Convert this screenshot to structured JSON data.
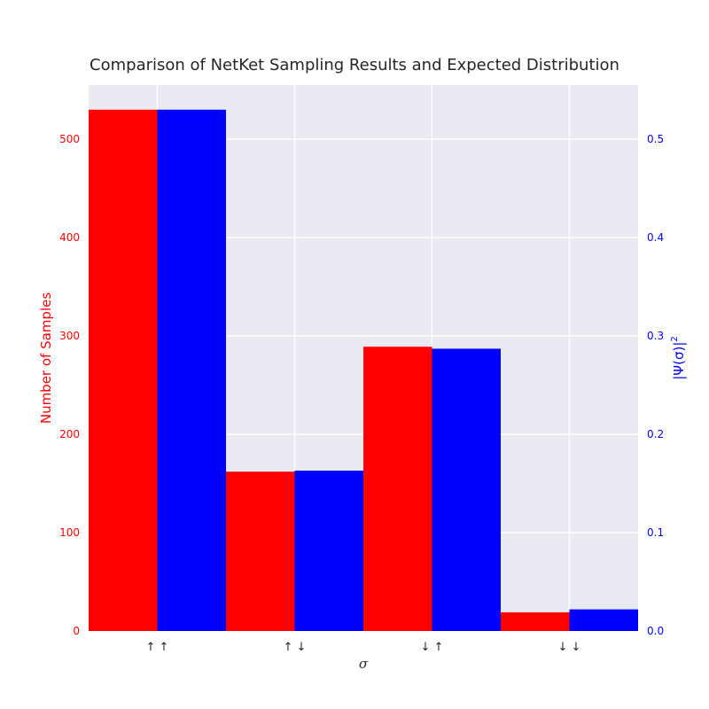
{
  "chart_data": {
    "type": "bar",
    "title": "Comparison of NetKet Sampling Results and Expected Distribution",
    "xlabel": "σ",
    "categories": [
      "↑ ↑",
      "↑ ↓",
      "↓ ↑",
      "↓ ↓"
    ],
    "series": [
      {
        "values": [
          530,
          162,
          289,
          19
        ],
        "axis": "left",
        "color": "#ff0000"
      },
      {
        "values": [
          0.53,
          0.163,
          0.287,
          0.022
        ],
        "axis": "right",
        "color": "#0000ff"
      }
    ],
    "ylabel_left": "Number of Samples",
    "ylabel_right_main": "|Ψ(σ)|",
    "ylabel_right_sup": "2",
    "ylim_left": [
      0,
      555
    ],
    "ylim_right": [
      0,
      0.555
    ],
    "yticks_left": [
      "0",
      "100",
      "200",
      "300",
      "400",
      "500"
    ],
    "yticks_right": [
      "0.0",
      "0.1",
      "0.2",
      "0.3",
      "0.4",
      "0.5"
    ],
    "grid": true,
    "colors": {
      "background": "#eaeaf2",
      "grid": "#ffffff",
      "left_axis": "#ff0000",
      "right_axis": "#0000ff"
    }
  }
}
